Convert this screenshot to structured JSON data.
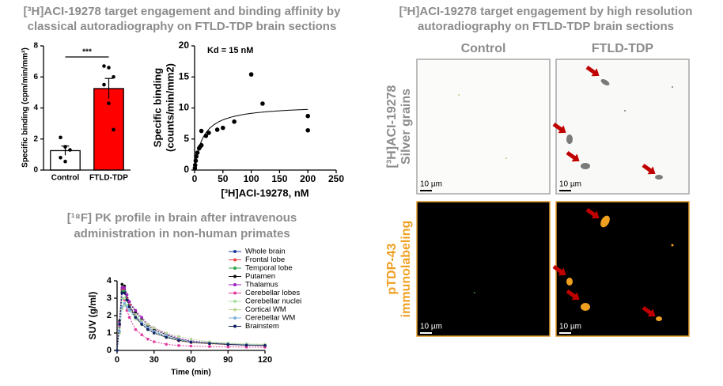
{
  "chart_data": [
    {
      "type": "bar",
      "title": [
        "[³H]ACI-19278 target engagement and binding affinity by",
        "classical autoradiography on FTLD-TDP brain sections"
      ],
      "y_label": "Specific binding (cpm/min/mm²)",
      "categories": [
        "Control",
        "FTLD-TDP"
      ],
      "values": [
        1.25,
        5.25
      ],
      "errors": [
        0.3,
        0.65
      ],
      "colors": [
        "#ffffff",
        "#ff0000"
      ],
      "points": [
        [
          2.1,
          1.5,
          1.3,
          0.8,
          0.55
        ],
        [
          6.7,
          6.6,
          6.0,
          5.5,
          4.3,
          2.6
        ]
      ],
      "significance": "***",
      "ylim": [
        0,
        8
      ],
      "yticks": [
        0,
        2,
        4,
        6,
        8
      ]
    },
    {
      "type": "scatter",
      "annotation": "Kd = 15 nM",
      "x_label": "[³H]ACI-19278, nM",
      "y_label": [
        "Specific binding",
        "(counts/min/mm2)"
      ],
      "x": [
        0.5,
        1,
        2,
        3,
        5,
        8,
        10,
        12,
        12,
        20,
        25,
        40,
        50,
        70,
        100,
        120,
        200,
        200
      ],
      "values": [
        0.3,
        0.8,
        1.5,
        2.2,
        2.8,
        3.5,
        3.8,
        4.0,
        6.3,
        5.5,
        6.0,
        6.5,
        6.8,
        7.8,
        15.4,
        10.7,
        8.7,
        6.4
      ],
      "fit": {
        "bmax": 10.5,
        "kd": 15
      },
      "xlim": [
        0,
        250
      ],
      "xticks": [
        0,
        50,
        100,
        150,
        200,
        250
      ],
      "ylim": [
        0,
        20
      ],
      "yticks": [
        0,
        5,
        10,
        15,
        20
      ]
    },
    {
      "type": "line",
      "title": [
        "[¹⁸F] PK profile in brain after intravenous",
        "administration in non-human primates"
      ],
      "x_label": "Time (min)",
      "y_label": "SUV (g/ml)",
      "x": [
        0,
        2,
        4,
        6,
        8,
        10,
        15,
        20,
        25,
        30,
        40,
        50,
        60,
        75,
        90,
        105,
        120
      ],
      "series": [
        {
          "name": "Whole brain",
          "color": "#1f3ca0",
          "values": [
            0,
            1.5,
            3.3,
            3.4,
            3.0,
            2.6,
            2.0,
            1.6,
            1.3,
            1.1,
            0.8,
            0.6,
            0.5,
            0.4,
            0.35,
            0.3,
            0.28
          ]
        },
        {
          "name": "Frontal lobe",
          "color": "#e8474a",
          "values": [
            0,
            1.6,
            3.5,
            3.5,
            3.0,
            2.6,
            1.9,
            1.5,
            1.2,
            1.0,
            0.75,
            0.55,
            0.45,
            0.38,
            0.33,
            0.3,
            0.27
          ]
        },
        {
          "name": "Temporal lobe",
          "color": "#2aa84a",
          "values": [
            0,
            1.5,
            3.4,
            3.4,
            2.9,
            2.5,
            1.9,
            1.5,
            1.2,
            1.0,
            0.75,
            0.58,
            0.47,
            0.4,
            0.34,
            0.3,
            0.28
          ]
        },
        {
          "name": "Putamen",
          "color": "#111111",
          "values": [
            0,
            1.7,
            3.8,
            3.7,
            3.2,
            2.8,
            2.2,
            1.8,
            1.4,
            1.2,
            0.9,
            0.65,
            0.5,
            0.42,
            0.36,
            0.32,
            0.3
          ]
        },
        {
          "name": "Thalamus",
          "color": "#a020c0",
          "values": [
            0,
            1.6,
            3.6,
            3.6,
            3.2,
            2.8,
            2.3,
            1.9,
            1.5,
            1.3,
            0.95,
            0.7,
            0.55,
            0.45,
            0.38,
            0.33,
            0.3
          ]
        },
        {
          "name": "Cerebellar lobes",
          "color": "#e040a0",
          "values": [
            0,
            1.4,
            3.0,
            2.9,
            2.3,
            1.9,
            1.2,
            0.9,
            0.65,
            0.5,
            0.35,
            0.28,
            0.25,
            0.22,
            0.2,
            0.19,
            0.18
          ]
        },
        {
          "name": "Cerebellar nuclei",
          "color": "#a8e0a0",
          "values": [
            0,
            1.3,
            3.0,
            3.0,
            2.6,
            2.3,
            1.8,
            1.5,
            1.2,
            1.0,
            0.8,
            0.6,
            0.5,
            0.45,
            0.4,
            0.35,
            0.33
          ]
        },
        {
          "name": "Cortical WM",
          "color": "#b8d890",
          "values": [
            0,
            1.0,
            2.4,
            2.6,
            2.5,
            2.3,
            2.0,
            1.7,
            1.5,
            1.3,
            1.0,
            0.8,
            0.65,
            0.5,
            0.43,
            0.38,
            0.35
          ]
        },
        {
          "name": "Cerebellar WM",
          "color": "#80b0e0",
          "values": [
            0,
            1.1,
            2.5,
            2.7,
            2.5,
            2.3,
            1.9,
            1.6,
            1.3,
            1.1,
            0.85,
            0.65,
            0.5,
            0.42,
            0.37,
            0.33,
            0.3
          ]
        },
        {
          "name": "Brainstem",
          "color": "#102060",
          "values": [
            0,
            1.5,
            3.3,
            3.3,
            2.9,
            2.5,
            1.9,
            1.5,
            1.2,
            1.0,
            0.75,
            0.58,
            0.47,
            0.4,
            0.34,
            0.3,
            0.28
          ]
        }
      ],
      "xlim": [
        0,
        120
      ],
      "xticks": [
        0,
        30,
        60,
        90,
        120
      ],
      "ylim": [
        0,
        4
      ],
      "yticks": [
        0,
        1,
        2,
        3,
        4
      ]
    }
  ],
  "image_panel": {
    "title": [
      "[³H]ACI-19278 target engagement by high resolution",
      "autoradiography on FTLD-TDP brain sections"
    ],
    "columns": [
      "Control",
      "FTLD-TDP"
    ],
    "rows": [
      [
        "[³H]ACI-19278",
        "Silver grains"
      ],
      [
        "pTDP-43",
        "immunolabeling"
      ]
    ],
    "scale_bars": [
      "10 µm",
      "10 µm",
      "10 µm",
      "10 µm"
    ]
  }
}
